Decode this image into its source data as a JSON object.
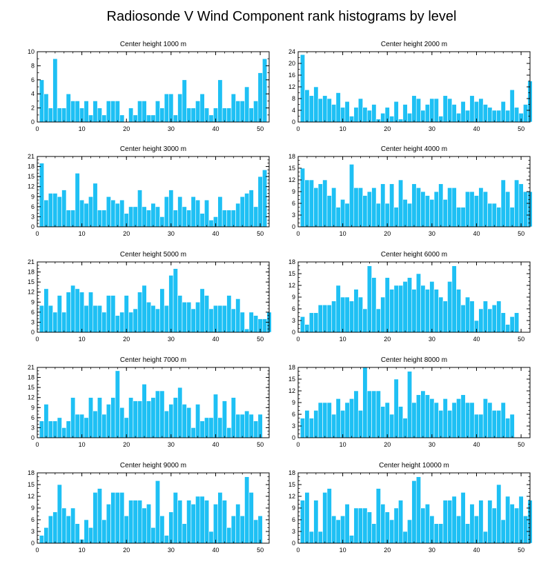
{
  "title": "Radiosonde V Wind Component rank histograms by level",
  "colors": {
    "bar": "#1ec0f4",
    "axis": "#000000"
  },
  "chart_data": [
    {
      "type": "bar",
      "title": "Center height 1000 m",
      "xlim": [
        0,
        52
      ],
      "ylim": [
        0,
        10
      ],
      "xticks": [
        0,
        10,
        20,
        30,
        40,
        50
      ],
      "yticks": [
        0,
        2,
        4,
        6,
        8,
        10
      ],
      "values": [
        6,
        4,
        2,
        9,
        2,
        2,
        4,
        3,
        3,
        2,
        3,
        1,
        3,
        2,
        1,
        3,
        3,
        3,
        1,
        0,
        2,
        1,
        3,
        3,
        1,
        1,
        3,
        2,
        4,
        4,
        1,
        4,
        6,
        2,
        2,
        3,
        4,
        2,
        1,
        2,
        6,
        2,
        2,
        4,
        3,
        3,
        5,
        2,
        3,
        7,
        9
      ]
    },
    {
      "type": "bar",
      "title": "Center height 2000 m",
      "xlim": [
        0,
        52
      ],
      "ylim": [
        0,
        24
      ],
      "xticks": [
        0,
        10,
        20,
        30,
        40,
        50
      ],
      "yticks": [
        0,
        4,
        8,
        12,
        16,
        20,
        24
      ],
      "values": [
        23,
        11,
        9,
        12,
        8,
        9,
        8,
        6,
        10,
        5,
        7,
        2,
        5,
        8,
        5,
        4,
        6,
        1,
        3,
        5,
        2,
        7,
        1,
        6,
        3,
        9,
        8,
        4,
        6,
        8,
        8,
        2,
        9,
        8,
        6,
        3,
        7,
        4,
        9,
        7,
        8,
        6,
        5,
        4,
        4,
        7,
        4,
        11,
        5,
        3,
        6,
        14
      ]
    },
    {
      "type": "bar",
      "title": "Center height 3000 m",
      "xlim": [
        0,
        52
      ],
      "ylim": [
        0,
        21
      ],
      "xticks": [
        0,
        10,
        20,
        30,
        40,
        50
      ],
      "yticks": [
        0,
        3,
        6,
        9,
        12,
        15,
        18,
        21
      ],
      "values": [
        19,
        8,
        10,
        10,
        9,
        11,
        5,
        5,
        16,
        8,
        7,
        9,
        13,
        5,
        5,
        9,
        8,
        7,
        8,
        4,
        6,
        6,
        11,
        6,
        5,
        7,
        6,
        3,
        9,
        11,
        5,
        9,
        6,
        5,
        9,
        8,
        4,
        8,
        2,
        3,
        9,
        5,
        5,
        5,
        7,
        9,
        10,
        11,
        6,
        15,
        17
      ]
    },
    {
      "type": "bar",
      "title": "Center height 4000 m",
      "xlim": [
        0,
        52
      ],
      "ylim": [
        0,
        18
      ],
      "xticks": [
        0,
        10,
        20,
        30,
        40,
        50
      ],
      "yticks": [
        0,
        3,
        6,
        9,
        12,
        15,
        18
      ],
      "values": [
        15,
        12,
        12,
        10,
        11,
        12,
        8,
        10,
        5,
        7,
        6,
        16,
        10,
        10,
        8,
        9,
        10,
        6,
        11,
        6,
        11,
        5,
        12,
        7,
        6,
        11,
        10,
        9,
        8,
        7,
        9,
        11,
        7,
        10,
        10,
        5,
        5,
        9,
        9,
        8,
        10,
        9,
        6,
        6,
        5,
        12,
        9,
        5,
        12,
        11,
        9,
        9
      ]
    },
    {
      "type": "bar",
      "title": "Center height 5000 m",
      "xlim": [
        0,
        52
      ],
      "ylim": [
        0,
        21
      ],
      "xticks": [
        0,
        10,
        20,
        30,
        40,
        50
      ],
      "yticks": [
        0,
        3,
        6,
        9,
        12,
        15,
        18,
        21
      ],
      "values": [
        8,
        13,
        8,
        6,
        11,
        6,
        12,
        14,
        13,
        12,
        8,
        12,
        8,
        8,
        6,
        11,
        11,
        5,
        6,
        11,
        6,
        7,
        12,
        14,
        9,
        8,
        7,
        13,
        8,
        17,
        19,
        11,
        9,
        9,
        7,
        9,
        13,
        11,
        7,
        8,
        8,
        8,
        11,
        7,
        10,
        6,
        1,
        6,
        5,
        4,
        4,
        6
      ]
    },
    {
      "type": "bar",
      "title": "Center height 6000 m",
      "xlim": [
        0,
        52
      ],
      "ylim": [
        0,
        18
      ],
      "xticks": [
        0,
        10,
        20,
        30,
        40,
        50
      ],
      "yticks": [
        0,
        3,
        6,
        9,
        12,
        15,
        18
      ],
      "values": [
        4,
        2,
        5,
        5,
        7,
        7,
        7,
        8,
        12,
        9,
        9,
        8,
        11,
        9,
        6,
        17,
        14,
        6,
        9,
        14,
        11,
        12,
        12,
        13,
        14,
        11,
        15,
        12,
        11,
        13,
        11,
        9,
        8,
        13,
        17,
        11,
        7,
        9,
        8,
        3,
        6,
        8,
        6,
        7,
        8,
        5,
        2,
        4,
        5
      ]
    },
    {
      "type": "bar",
      "title": "Center height 7000 m",
      "xlim": [
        0,
        52
      ],
      "ylim": [
        0,
        21
      ],
      "xticks": [
        0,
        10,
        20,
        30,
        40,
        50
      ],
      "yticks": [
        0,
        3,
        6,
        9,
        12,
        15,
        18,
        21
      ],
      "values": [
        5,
        10,
        5,
        5,
        6,
        3,
        5,
        12,
        7,
        7,
        6,
        12,
        8,
        12,
        7,
        10,
        12,
        20,
        9,
        6,
        12,
        11,
        11,
        16,
        11,
        12,
        14,
        14,
        8,
        10,
        12,
        15,
        10,
        9,
        3,
        10,
        5,
        6,
        6,
        13,
        6,
        11,
        3,
        12,
        7,
        7,
        8,
        7,
        5,
        7
      ]
    },
    {
      "type": "bar",
      "title": "Center height 8000 m",
      "xlim": [
        0,
        52
      ],
      "ylim": [
        0,
        18
      ],
      "xticks": [
        0,
        10,
        20,
        30,
        40,
        50
      ],
      "yticks": [
        0,
        3,
        6,
        9,
        12,
        15,
        18
      ],
      "values": [
        5,
        7,
        5,
        7,
        9,
        9,
        9,
        6,
        10,
        7,
        9,
        10,
        12,
        7,
        18,
        12,
        12,
        12,
        8,
        9,
        6,
        15,
        8,
        5,
        17,
        9,
        11,
        12,
        11,
        10,
        9,
        7,
        10,
        7,
        9,
        10,
        11,
        9,
        9,
        6,
        6,
        10,
        9,
        7,
        7,
        9,
        5,
        6
      ]
    },
    {
      "type": "bar",
      "title": "Center height 9000 m",
      "xlim": [
        0,
        52
      ],
      "ylim": [
        0,
        18
      ],
      "xticks": [
        0,
        10,
        20,
        30,
        40,
        50
      ],
      "yticks": [
        0,
        3,
        6,
        9,
        12,
        15,
        18
      ],
      "values": [
        2,
        4,
        7,
        8,
        15,
        9,
        7,
        9,
        5,
        1,
        6,
        4,
        13,
        14,
        6,
        10,
        13,
        13,
        13,
        7,
        11,
        11,
        11,
        9,
        10,
        4,
        16,
        7,
        2,
        8,
        13,
        11,
        5,
        11,
        10,
        12,
        12,
        11,
        3,
        10,
        13,
        11,
        4,
        7,
        10,
        7,
        17,
        13,
        6,
        7
      ]
    },
    {
      "type": "bar",
      "title": "Center height 10000 m",
      "xlim": [
        0,
        52
      ],
      "ylim": [
        0,
        18
      ],
      "xticks": [
        0,
        10,
        20,
        30,
        40,
        50
      ],
      "yticks": [
        0,
        3,
        6,
        9,
        12,
        15,
        18
      ],
      "values": [
        11,
        13,
        3,
        11,
        3,
        13,
        14,
        7,
        6,
        7,
        10,
        2,
        9,
        9,
        9,
        8,
        5,
        14,
        10,
        8,
        6,
        9,
        11,
        3,
        6,
        16,
        17,
        9,
        10,
        7,
        5,
        5,
        11,
        11,
        12,
        7,
        13,
        5,
        10,
        7,
        11,
        3,
        11,
        9,
        15,
        6,
        12,
        10,
        9,
        12,
        7,
        11
      ]
    }
  ]
}
